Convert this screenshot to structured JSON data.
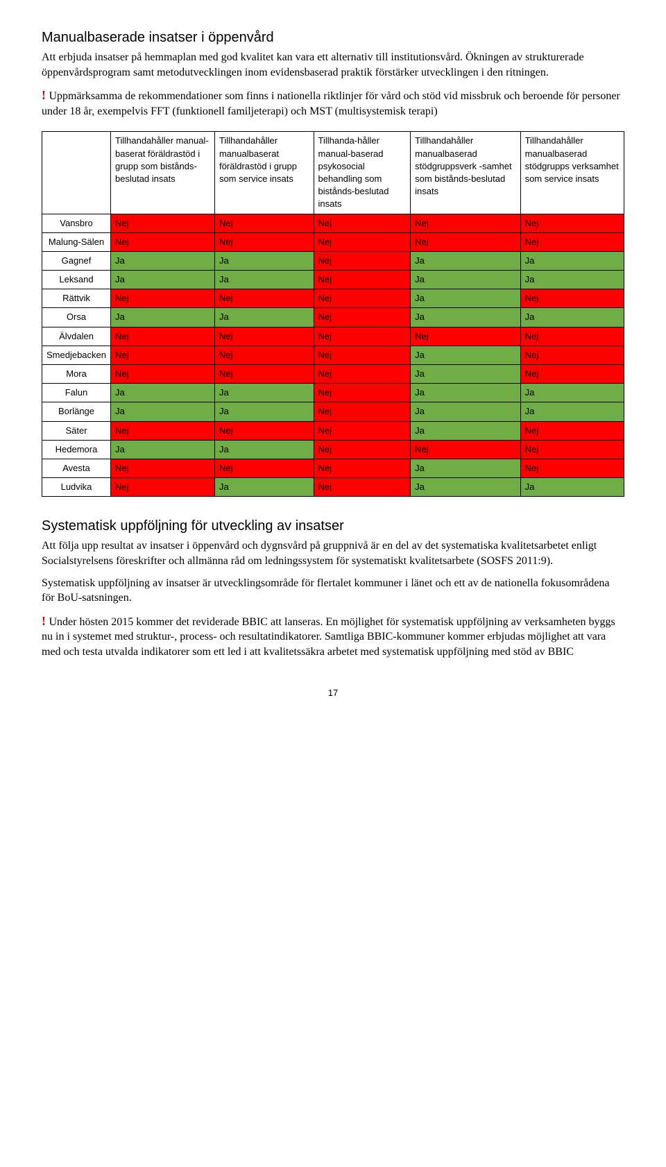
{
  "colors": {
    "ja": "#70ad47",
    "nej": "#ff0000"
  },
  "section1": {
    "title": "Manualbaserade insatser i öppenvård",
    "p1": "Att erbjuda insatser på hemmaplan med god kvalitet kan vara ett alternativ till institutionsvård. Ökningen av strukturerade öppenvårdsprogram samt metodutvecklingen inom evidensbaserad praktik förstärker utvecklingen i den ritningen.",
    "p2": "Uppmärksamma de rekommendationer som finns i nationella riktlinjer för vård och stöd vid missbruk och beroende för personer under 18 år, exempelvis FFT (funktionell familjeterapi) och MST (multisystemisk terapi)"
  },
  "table": {
    "columns": [
      "Tillhandahåller manual-baserat föräldrastöd i grupp som bistånds-beslutad insats",
      "Tillhandahåller manualbaserat föräldrastöd i grupp som service insats",
      "Tillhanda-håller manual-baserad psykosocial behandling som bistånds-beslutad insats",
      "Tillhandahåller manualbaserad stödgruppsverk -samhet som bistånds-beslutad insats",
      "Tillhandahåller manualbaserad stödgrupps verksamhet som service insats"
    ],
    "rows": [
      {
        "label": "Vansbro",
        "cells": [
          "Nej",
          "Nej",
          "Nej",
          "Nej",
          "Nej"
        ]
      },
      {
        "label": "Malung-Sälen",
        "cells": [
          "Nej",
          "Nej",
          "Nej",
          "Nej",
          "Nej"
        ]
      },
      {
        "label": "Gagnef",
        "cells": [
          "Ja",
          "Ja",
          "Nej",
          "Ja",
          "Ja"
        ]
      },
      {
        "label": "Leksand",
        "cells": [
          "Ja",
          "Ja",
          "Nej",
          "Ja",
          "Ja"
        ]
      },
      {
        "label": "Rättvik",
        "cells": [
          "Nej",
          "Nej",
          "Nej",
          "Ja",
          "Nej"
        ]
      },
      {
        "label": "Orsa",
        "cells": [
          "Ja",
          "Ja",
          "Nej",
          "Ja",
          "Ja"
        ]
      },
      {
        "label": "Älvdalen",
        "cells": [
          "Nej",
          "Nej",
          "Nej",
          "Nej",
          "Nej"
        ]
      },
      {
        "label": "Smedjebacken",
        "cells": [
          "Nej",
          "Nej",
          "Nej",
          "Ja",
          "Nej"
        ]
      },
      {
        "label": "Mora",
        "cells": [
          "Nej",
          "Nej",
          "Nej",
          "Ja",
          "Nej"
        ]
      },
      {
        "label": "Falun",
        "cells": [
          "Ja",
          "Ja",
          "Nej",
          "Ja",
          "Ja"
        ]
      },
      {
        "label": "Borlänge",
        "cells": [
          "Ja",
          "Ja",
          "Nej",
          "Ja",
          "Ja"
        ]
      },
      {
        "label": "Säter",
        "cells": [
          "Nej",
          "Nej",
          "Nej",
          "Ja",
          "Nej"
        ]
      },
      {
        "label": "Hedemora",
        "cells": [
          "Ja",
          "Ja",
          "Nej",
          "Nej",
          "Nej"
        ]
      },
      {
        "label": "Avesta",
        "cells": [
          "Nej",
          "Nej",
          "Nej",
          "Ja",
          "Nej"
        ]
      },
      {
        "label": "Ludvika",
        "cells": [
          "Nej",
          "Ja",
          "Nej",
          "Ja",
          "Ja"
        ]
      }
    ]
  },
  "section2": {
    "title": "Systematisk uppföljning för utveckling av insatser",
    "p1": "Att följa upp resultat av insatser i öppenvård och dygnsvård på gruppnivå är en del av det systematiska kvalitetsarbetet enligt Socialstyrelsens föreskrifter och allmänna råd om ledningssystem för systematiskt kvalitetsarbete (SOSFS 2011:9).",
    "p2": "Systematisk uppföljning av insatser är utvecklingsområde för flertalet kommuner i länet och ett av de nationella fokusområdena för BoU-satsningen.",
    "p3": "Under hösten 2015 kommer det reviderade BBIC att lanseras. En möjlighet för systematisk uppföljning av verksamheten byggs nu in i systemet med struktur-, process- och resultatindikatorer. Samtliga BBIC-kommuner kommer erbjudas möjlighet att vara med och testa utvalda indikatorer som ett led i att kvalitetssäkra arbetet med systematisk uppföljning med stöd av BBIC"
  },
  "page_number": "17"
}
